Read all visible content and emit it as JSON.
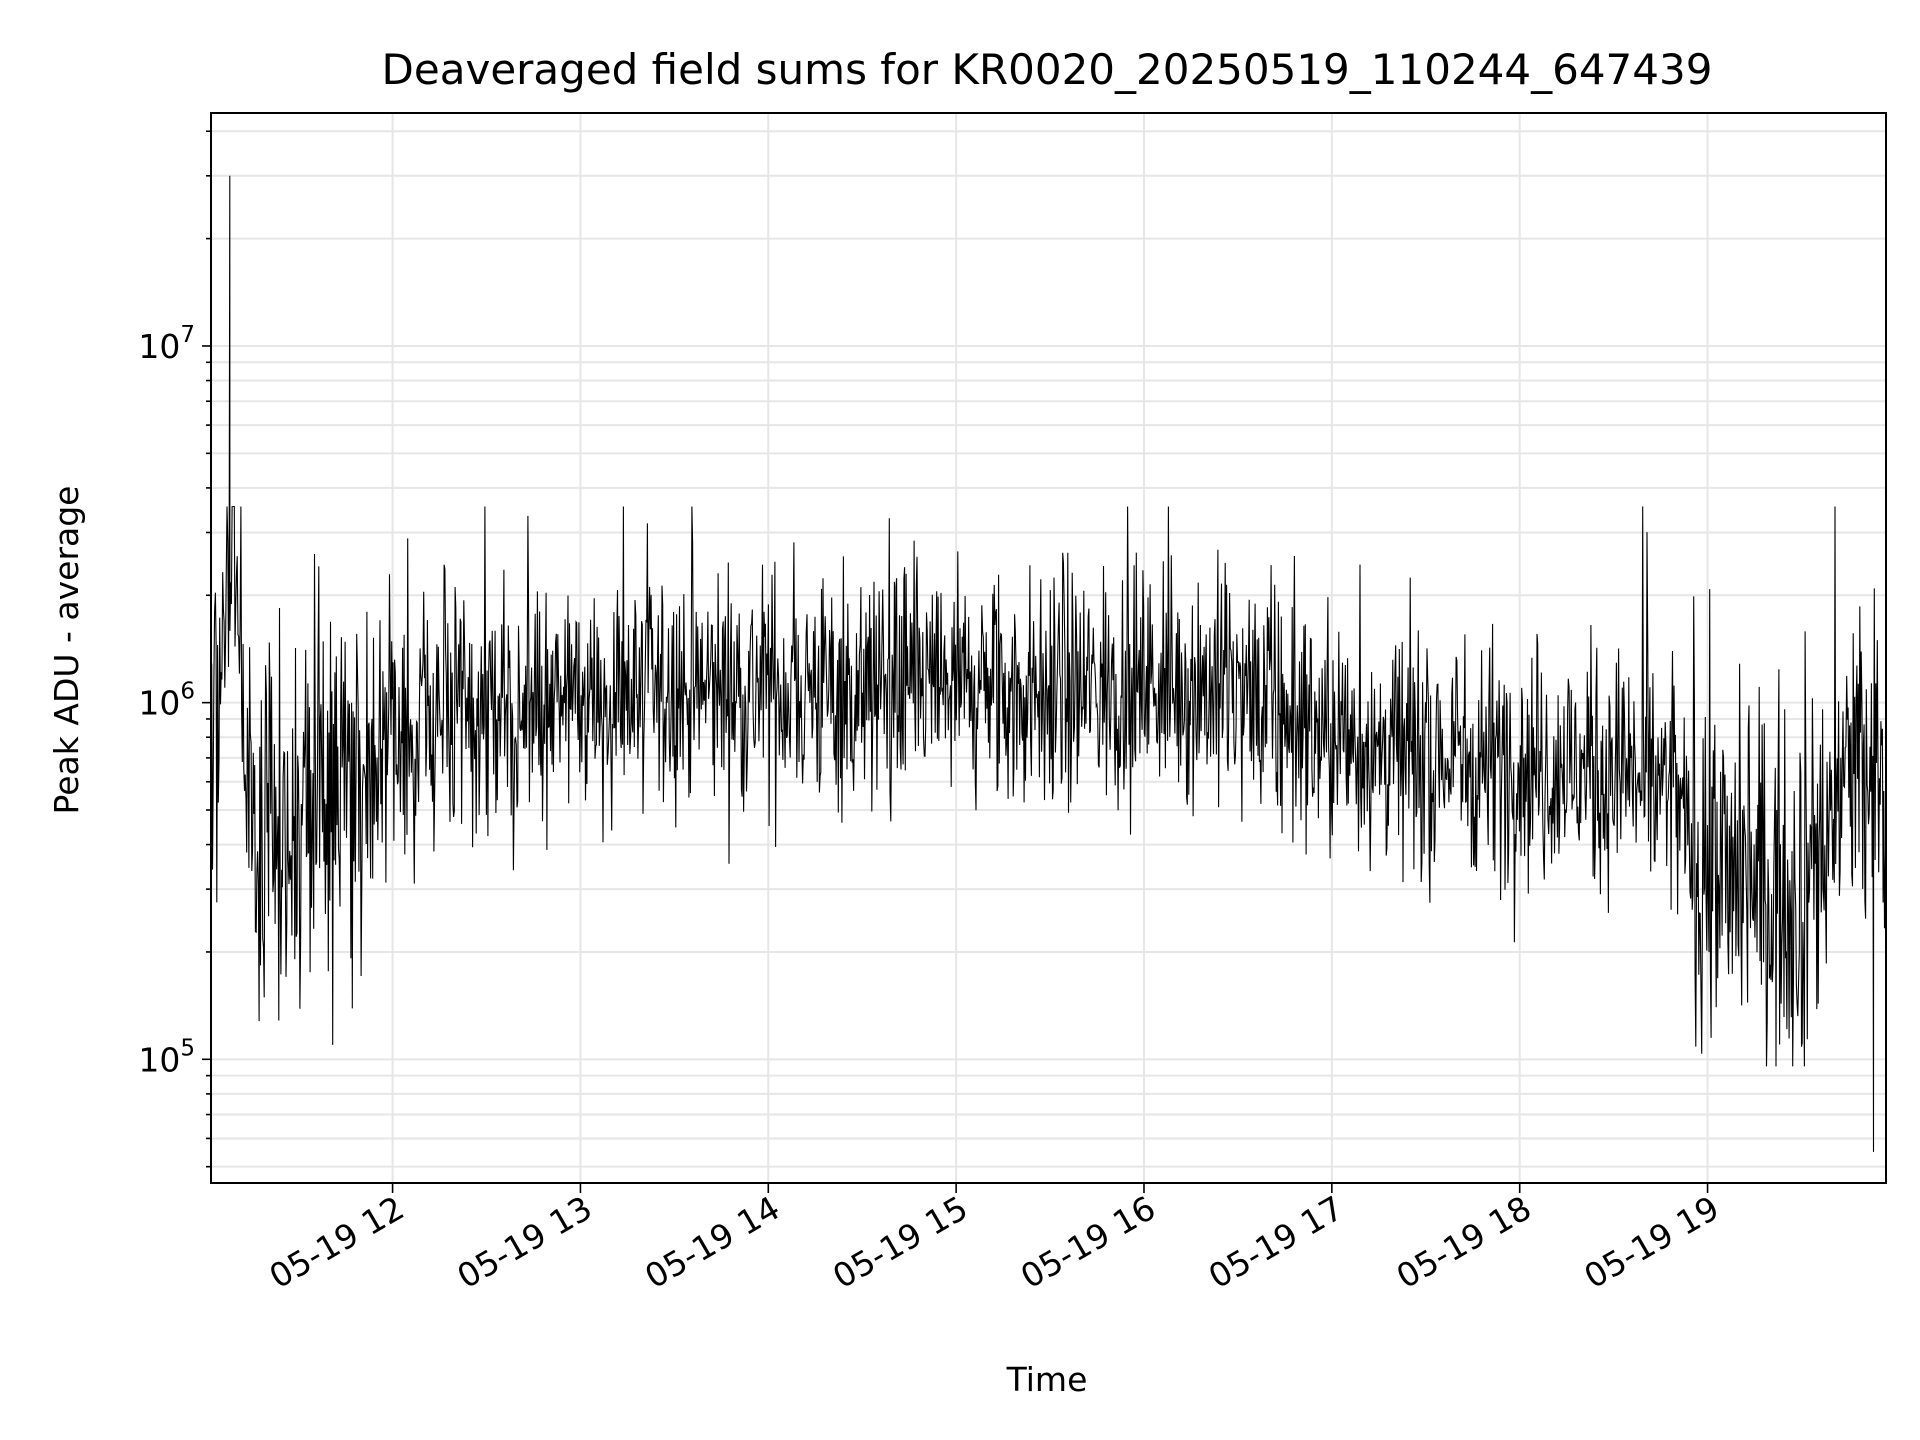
{
  "chart_data": {
    "type": "line",
    "title": "Deaveraged field sums for KR0020_20250519_110244_647439",
    "xlabel": "Time",
    "ylabel": "Peak ADU - average",
    "xlim": [
      "2025-05-19 11:02",
      "2025-05-19 19:57"
    ],
    "ylim": [
      45000,
      45000000
    ],
    "yscale": "log",
    "grid": true,
    "grid_which": "both",
    "line_color": "#000000",
    "grid_color": "#e6e6e6",
    "x_tick_labels": [
      "05-19 12",
      "05-19 13",
      "05-19 14",
      "05-19 15",
      "05-19 16",
      "05-19 17",
      "05-19 18",
      "05-19 19"
    ],
    "x_ticks": [
      "2025-05-19 12:00",
      "2025-05-19 13:00",
      "2025-05-19 14:00",
      "2025-05-19 15:00",
      "2025-05-19 16:00",
      "2025-05-19 17:00",
      "2025-05-19 18:00",
      "2025-05-19 19:00"
    ],
    "y_tick_labels": [
      {
        "base": "10",
        "exp": "5",
        "value": 100000
      },
      {
        "base": "10",
        "exp": "6",
        "value": 1000000
      },
      {
        "base": "10",
        "exp": "7",
        "value": 10000000
      }
    ],
    "series": [
      {
        "x": [
          "2025-05-19 11:02",
          "2025-05-19 11:08",
          "2025-05-19 11:15",
          "2025-05-19 11:22",
          "2025-05-19 11:30",
          "2025-05-19 11:40",
          "2025-05-19 11:50",
          "2025-05-19 12:00",
          "2025-05-19 12:15",
          "2025-05-19 12:30",
          "2025-05-19 12:45",
          "2025-05-19 13:00",
          "2025-05-19 13:15",
          "2025-05-19 13:30",
          "2025-05-19 13:45",
          "2025-05-19 14:00",
          "2025-05-19 14:15",
          "2025-05-19 14:30",
          "2025-05-19 14:45",
          "2025-05-19 15:00",
          "2025-05-19 15:15",
          "2025-05-19 15:30",
          "2025-05-19 15:45",
          "2025-05-19 16:00",
          "2025-05-19 16:15",
          "2025-05-19 16:30",
          "2025-05-19 16:45",
          "2025-05-19 17:00",
          "2025-05-19 17:15",
          "2025-05-19 17:30",
          "2025-05-19 17:45",
          "2025-05-19 18:00",
          "2025-05-19 18:15",
          "2025-05-19 18:30",
          "2025-05-19 18:45",
          "2025-05-19 19:00",
          "2025-05-19 19:15",
          "2025-05-19 19:30",
          "2025-05-19 19:45",
          "2025-05-19 19:57"
        ],
        "y": [
          550000,
          3000000,
          500000,
          400000,
          500000,
          550000,
          650000,
          800000,
          900000,
          900000,
          950000,
          1000000,
          1050000,
          1050000,
          1100000,
          1100000,
          1100000,
          1050000,
          1100000,
          1100000,
          1050000,
          1050000,
          1100000,
          1150000,
          1150000,
          1050000,
          900000,
          800000,
          750000,
          700000,
          700000,
          700000,
          650000,
          650000,
          600000,
          350000,
          300000,
          300000,
          650000,
          550000
        ]
      }
    ],
    "annotations": {
      "spike": {
        "x": "2025-05-19 11:08",
        "y": 30000000
      },
      "min": {
        "x": "2025-05-19 19:53",
        "y": 55000
      }
    }
  }
}
